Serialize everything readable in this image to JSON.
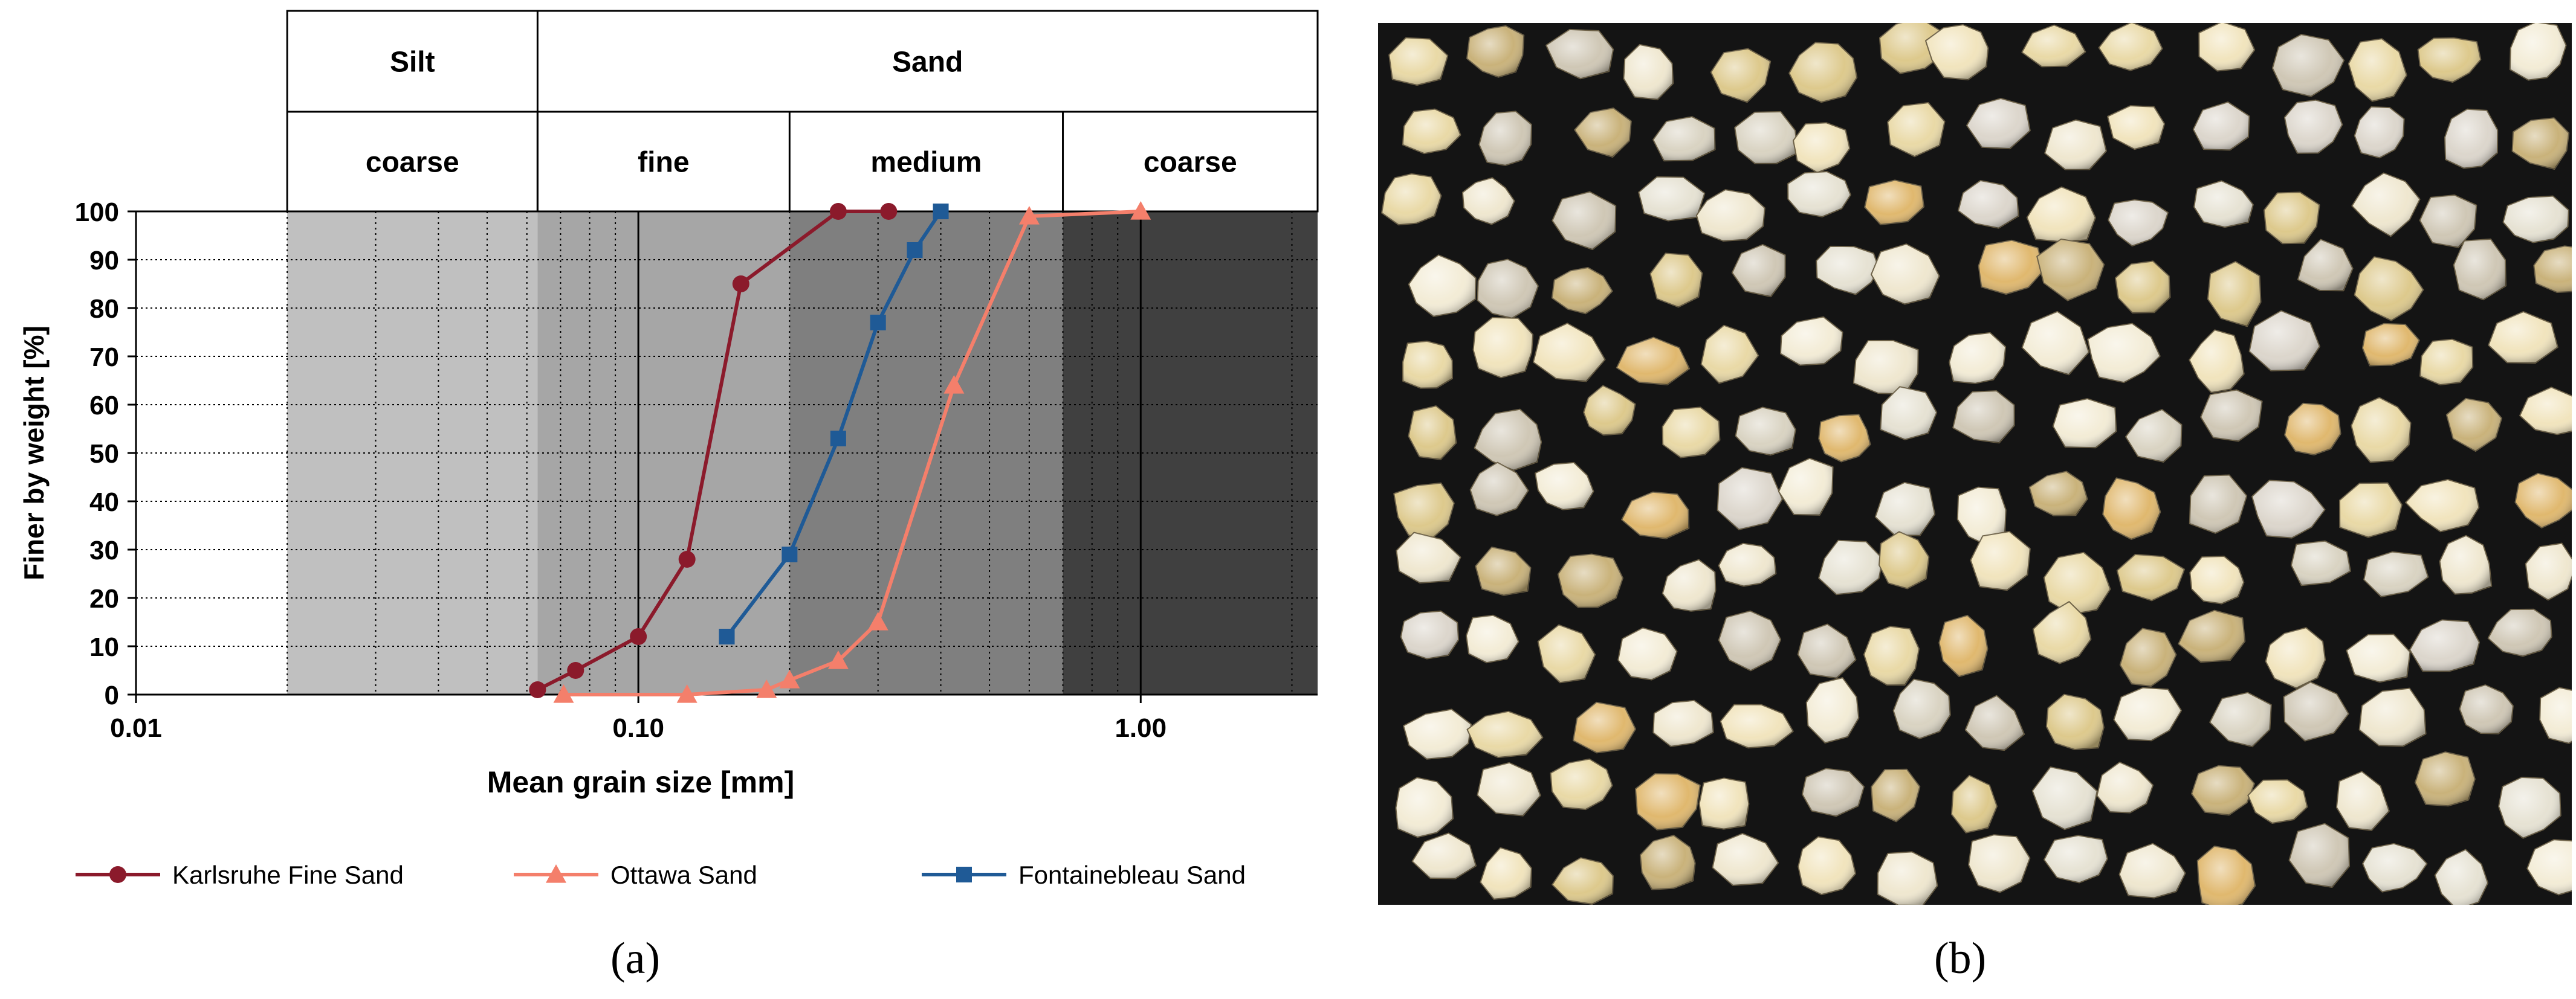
{
  "chart_data": {
    "type": "line",
    "xlabel": "Mean grain size [mm]",
    "ylabel": "Finer by weight [%]",
    "x_scale": "log",
    "xlim": [
      0.01,
      2.25
    ],
    "ylim": [
      0,
      100
    ],
    "x_ticks": [
      0.01,
      0.1,
      1.0
    ],
    "x_tick_labels": [
      "0.01",
      "0.10",
      "1.00"
    ],
    "y_ticks": [
      0,
      10,
      20,
      30,
      40,
      50,
      60,
      70,
      80,
      90,
      100
    ],
    "y_tick_labels": [
      "0",
      "10",
      "20",
      "30",
      "40",
      "50",
      "60",
      "70",
      "80",
      "90",
      "100"
    ],
    "grid": true,
    "legend_position": "bottom",
    "soil_classes": {
      "top_row": [
        {
          "label": "Silt",
          "from": 0.02,
          "to": 0.063
        },
        {
          "label": "Sand",
          "from": 0.063,
          "to": 2.25
        }
      ],
      "bottom_row": [
        {
          "label": "coarse",
          "from": 0.02,
          "to": 0.063
        },
        {
          "label": "fine",
          "from": 0.063,
          "to": 0.2
        },
        {
          "label": "medium",
          "from": 0.2,
          "to": 0.7
        },
        {
          "label": "coarse",
          "from": 0.7,
          "to": 2.25
        }
      ]
    },
    "bands": [
      {
        "from": 0.02,
        "to": 0.063,
        "color": "#c0c0c0"
      },
      {
        "from": 0.063,
        "to": 0.2,
        "color": "#a6a6a6"
      },
      {
        "from": 0.2,
        "to": 0.7,
        "color": "#7f7f7f"
      },
      {
        "from": 0.7,
        "to": 2.25,
        "color": "#404040"
      }
    ],
    "series": [
      {
        "name": "Karlsruhe Fine Sand",
        "color": "#8b1a2b",
        "marker": "circle",
        "x": [
          0.063,
          0.075,
          0.1,
          0.125,
          0.16,
          0.25,
          0.315
        ],
        "y": [
          1,
          5,
          12,
          28,
          85,
          100,
          100
        ]
      },
      {
        "name": "Ottawa Sand",
        "color": "#f47f6b",
        "marker": "triangle",
        "x": [
          0.071,
          0.125,
          0.18,
          0.2,
          0.25,
          0.3,
          0.425,
          0.6,
          1.0
        ],
        "y": [
          0,
          0,
          1,
          3,
          7,
          15,
          64,
          99,
          100
        ]
      },
      {
        "name": "Fontainebleau Sand",
        "color": "#1f5a96",
        "marker": "square",
        "x": [
          0.15,
          0.2,
          0.25,
          0.3,
          0.355,
          0.4
        ],
        "y": [
          12,
          29,
          53,
          77,
          92,
          100
        ]
      }
    ]
  },
  "panels": {
    "a_label": "(a)",
    "b_label": "(b)"
  },
  "photo": {
    "background": "#141414"
  }
}
